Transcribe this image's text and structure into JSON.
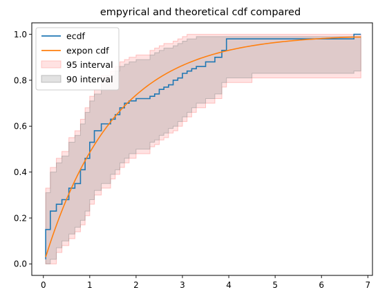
{
  "chart_data": {
    "type": "line",
    "title": "empyrical and theoretical cdf compared",
    "xlabel": "",
    "ylabel": "",
    "xlim": [
      -0.25,
      7.1
    ],
    "ylim": [
      -0.05,
      1.05
    ],
    "xticks": [
      "0",
      "1",
      "2",
      "3",
      "4",
      "5",
      "6",
      "7"
    ],
    "yticks": [
      "0.0",
      "0.2",
      "0.4",
      "0.6",
      "0.8",
      "1.0"
    ],
    "grid": false,
    "legend_position": "top-left",
    "legend": [
      "ecdf",
      "expon cdf",
      "95 interval",
      "90 interval"
    ],
    "colors": {
      "ecdf": "#1f77b4",
      "expon": "#ff7f0e",
      "band95": "#ff9896",
      "band90": "#8c8c8c"
    },
    "ecdf": {
      "name": "ecdf",
      "x": [
        0.05,
        0.15,
        0.28,
        0.4,
        0.55,
        0.68,
        0.8,
        0.9,
        1.0,
        1.1,
        1.25,
        1.45,
        1.55,
        1.65,
        1.75,
        1.85,
        2.0,
        2.3,
        2.4,
        2.5,
        2.6,
        2.7,
        2.8,
        2.9,
        3.0,
        3.1,
        3.2,
        3.3,
        3.5,
        3.7,
        3.85,
        3.95,
        4.5,
        6.7,
        6.85
      ],
      "y": [
        0.15,
        0.23,
        0.26,
        0.28,
        0.33,
        0.35,
        0.41,
        0.46,
        0.53,
        0.58,
        0.61,
        0.63,
        0.65,
        0.68,
        0.7,
        0.71,
        0.72,
        0.73,
        0.74,
        0.76,
        0.77,
        0.78,
        0.8,
        0.81,
        0.83,
        0.84,
        0.85,
        0.86,
        0.88,
        0.9,
        0.93,
        0.98,
        0.98,
        1.0,
        1.0
      ]
    },
    "expon_cdf": {
      "name": "expon cdf",
      "x_range": [
        0.05,
        6.85
      ],
      "loc": 0.0,
      "scale": 1.5,
      "start_y": 0.03
    },
    "interval_95": {
      "name": "95 interval",
      "x": [
        0.05,
        0.15,
        0.28,
        0.4,
        0.55,
        0.68,
        0.8,
        0.9,
        1.0,
        1.1,
        1.25,
        1.45,
        1.55,
        1.65,
        1.75,
        1.85,
        2.0,
        2.3,
        2.4,
        2.5,
        2.6,
        2.7,
        2.8,
        2.9,
        3.0,
        3.1,
        3.2,
        3.3,
        3.5,
        3.7,
        3.85,
        3.95,
        4.5,
        6.7,
        6.85
      ],
      "lower": [
        0.0,
        0.0,
        0.05,
        0.08,
        0.11,
        0.14,
        0.17,
        0.21,
        0.26,
        0.3,
        0.33,
        0.37,
        0.39,
        0.42,
        0.44,
        0.46,
        0.48,
        0.51,
        0.52,
        0.54,
        0.55,
        0.57,
        0.58,
        0.6,
        0.62,
        0.64,
        0.66,
        0.68,
        0.7,
        0.72,
        0.77,
        0.79,
        0.81,
        0.81,
        0.81
      ],
      "upper": [
        0.33,
        0.42,
        0.46,
        0.49,
        0.55,
        0.58,
        0.63,
        0.68,
        0.73,
        0.76,
        0.82,
        0.84,
        0.86,
        0.88,
        0.89,
        0.9,
        0.91,
        0.93,
        0.94,
        0.95,
        0.96,
        0.96,
        0.97,
        0.98,
        0.99,
        1.0,
        1.0,
        1.0,
        1.0,
        1.0,
        1.0,
        1.0,
        1.0,
        1.0,
        1.0
      ]
    },
    "interval_90": {
      "name": "90 interval",
      "x": [
        0.05,
        0.15,
        0.28,
        0.4,
        0.55,
        0.68,
        0.8,
        0.9,
        1.0,
        1.1,
        1.25,
        1.45,
        1.55,
        1.65,
        1.75,
        1.85,
        2.0,
        2.3,
        2.4,
        2.5,
        2.6,
        2.7,
        2.8,
        2.9,
        3.0,
        3.1,
        3.2,
        3.3,
        3.5,
        3.7,
        3.85,
        3.95,
        4.5,
        6.7,
        6.85
      ],
      "lower": [
        0.0,
        0.02,
        0.07,
        0.1,
        0.13,
        0.16,
        0.19,
        0.23,
        0.28,
        0.32,
        0.35,
        0.39,
        0.41,
        0.44,
        0.46,
        0.48,
        0.5,
        0.53,
        0.54,
        0.56,
        0.57,
        0.59,
        0.6,
        0.62,
        0.64,
        0.66,
        0.68,
        0.7,
        0.72,
        0.74,
        0.79,
        0.81,
        0.83,
        0.84,
        0.84
      ],
      "upper": [
        0.31,
        0.4,
        0.44,
        0.47,
        0.53,
        0.56,
        0.61,
        0.66,
        0.71,
        0.74,
        0.8,
        0.82,
        0.84,
        0.86,
        0.87,
        0.88,
        0.89,
        0.91,
        0.92,
        0.93,
        0.94,
        0.94,
        0.95,
        0.96,
        0.97,
        0.98,
        0.98,
        0.99,
        0.99,
        0.99,
        0.99,
        0.99,
        0.99,
        0.99,
        0.99
      ]
    }
  }
}
